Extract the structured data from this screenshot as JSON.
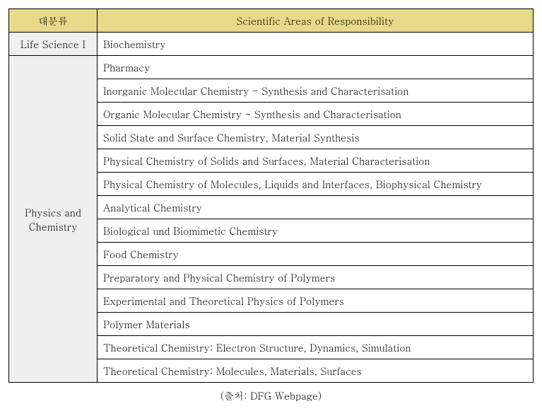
{
  "table": {
    "headers": {
      "category": "대분류",
      "area": "Scientific Areas of Responsibility"
    },
    "header_bg_color": "#e8d98a",
    "category_bg_color": "#efefef",
    "border_color": "#000000",
    "font_family": "Batang, Times New Roman, serif",
    "font_size": 14,
    "sections": [
      {
        "category": "Life Science I",
        "rows": [
          "Biochemistry"
        ]
      },
      {
        "category": "Physics and Chemistry",
        "rows": [
          "Pharmacy",
          "Inorganic Molecular Chemistry - Synthesis and Characterisation",
          "Organic Molecular Chemistry - Synthesis and Characterisation",
          "Solid State and Surface Chemistry, Material Synthesis",
          "Physical Chemistry of Solids and Surfaces, Material Characterisation",
          "Physical Chemistry of Molecules, Liquids and Interfaces, Biophysical Chemistry",
          "Analytical Chemistry",
          "Biological und Biomimetic Chemistry",
          "Food Chemistry",
          "Preparatory and Physical Chemistry of Polymers",
          "Experimental and Theoretical Physics of Polymers",
          "Polymer Materials",
          "Theoretical Chemistry: Electron Structure, Dynamics, Simulation",
          "Theoretical Chemistry: Molecules, Materials, Surfaces"
        ]
      }
    ]
  },
  "caption": "(출처: DFG Webpage)"
}
